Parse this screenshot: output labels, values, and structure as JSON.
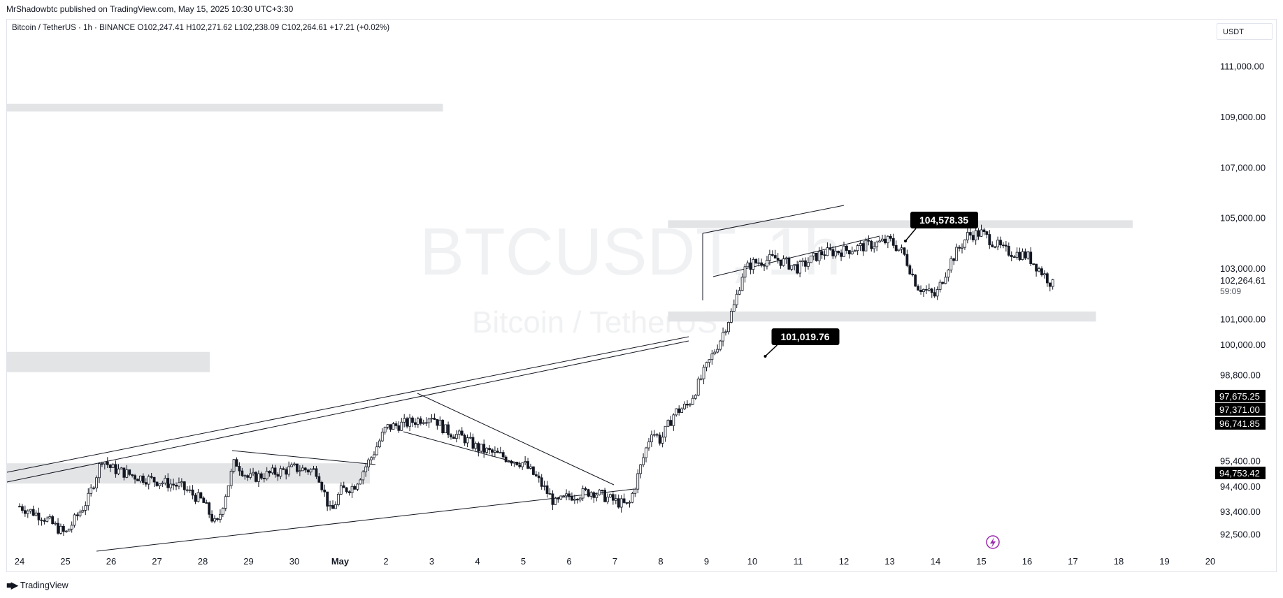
{
  "header": {
    "publisher": "MrShadowbtc published on TradingView.com, May 15, 2025 10:30 UTC+3:30"
  },
  "legend": {
    "symbol": "Bitcoin / TetherUS · 1h · BINANCE",
    "open": "O102,247.41",
    "high": "H102,271.62",
    "low": "L102,238.09",
    "close": "C102,264.61",
    "change": "+17.21 (+0.02%)"
  },
  "currency_button": "USDT",
  "watermark": {
    "symbol": "BTCUSDT, 1h",
    "name": "Bitcoin / TetherUS"
  },
  "footer": {
    "logo_icon": "tv-logo-icon",
    "brand": "TradingView"
  },
  "colors": {
    "tag": "#000000",
    "zone": "#e3e4e6",
    "candle": "#131722",
    "alert_icon": "#9c27b0"
  },
  "chart_data": {
    "type": "candlestick",
    "symbol": "BTCUSDT",
    "interval": "1h",
    "exchange": "BINANCE",
    "x_ticks": [
      "24",
      "25",
      "26",
      "27",
      "28",
      "29",
      "30",
      "May",
      "2",
      "3",
      "4",
      "5",
      "6",
      "7",
      "8",
      "9",
      "10",
      "11",
      "12",
      "13",
      "14",
      "15",
      "16",
      "17",
      "18",
      "19",
      "20"
    ],
    "y_ticks": [
      "111,000.00",
      "109,000.00",
      "107,000.00",
      "105,000.00",
      "103,000.00",
      "101,000.00",
      "100,000.00",
      "98,800.00",
      "95,400.00",
      "94,400.00",
      "93,400.00",
      "92,500.00"
    ],
    "ylim": [
      91800,
      112500
    ],
    "current_price": {
      "value": "102,264.61",
      "countdown": "59:09"
    },
    "price_tags": [
      "97,675.25",
      "97,371.00",
      "96,741.85",
      "94,753.42"
    ],
    "callouts": [
      {
        "label": "104,578.35",
        "date": "14",
        "price": 104578.35
      },
      {
        "label": "101,019.76",
        "date": "11",
        "price": 101019.76
      }
    ],
    "zones": [
      {
        "from": "24",
        "to": "2",
        "low": 94500,
        "high": 95300
      },
      {
        "from": "24",
        "to": "28",
        "low": 98900,
        "high": 99700
      },
      {
        "from": "24",
        "to": "3",
        "low": 109200,
        "high": 109500
      },
      {
        "from": "9",
        "to": "17",
        "low": 100900,
        "high": 101300
      },
      {
        "from": "9",
        "to": "18",
        "low": 104600,
        "high": 104900
      }
    ],
    "path": [
      [
        "24",
        93600
      ],
      [
        "24.5",
        93200
      ],
      [
        "25",
        92500
      ],
      [
        "25.5",
        93900
      ],
      [
        "25.8",
        95500
      ],
      [
        "26",
        95100
      ],
      [
        "26.5",
        94800
      ],
      [
        "27",
        94600
      ],
      [
        "27.5",
        94400
      ],
      [
        "28",
        93800
      ],
      [
        "28.3",
        92800
      ],
      [
        "28.7",
        95400
      ],
      [
        "29",
        94700
      ],
      [
        "29.5",
        94900
      ],
      [
        "30",
        95100
      ],
      [
        "30.5",
        95000
      ],
      [
        "30.8",
        93300
      ],
      [
        "31",
        94200
      ],
      [
        "31.3",
        94400
      ],
      [
        "31.7",
        95600
      ],
      [
        "32",
        96700
      ],
      [
        "32.5",
        96900
      ],
      [
        "33",
        97200
      ],
      [
        "33.3",
        96600
      ],
      [
        "33.7",
        96300
      ],
      [
        "34",
        95900
      ],
      [
        "34.5",
        95600
      ],
      [
        "35",
        95300
      ],
      [
        "35.3",
        94700
      ],
      [
        "35.7",
        93700
      ],
      [
        "36",
        94000
      ],
      [
        "36.5",
        94200
      ],
      [
        "37",
        93800
      ],
      [
        "37.3",
        93600
      ],
      [
        "37.5",
        94800
      ],
      [
        "37.8",
        96600
      ],
      [
        "38",
        96200
      ],
      [
        "38.3",
        97300
      ],
      [
        "38.6",
        97600
      ],
      [
        "39",
        99100
      ],
      [
        "39.3",
        100200
      ],
      [
        "39.6",
        101500
      ],
      [
        "39.8",
        102900
      ],
      [
        "40",
        103200
      ],
      [
        "40.5",
        103400
      ],
      [
        "41",
        103000
      ],
      [
        "41.5",
        103600
      ],
      [
        "42",
        103700
      ],
      [
        "42.5",
        103900
      ],
      [
        "43",
        104100
      ],
      [
        "43.3",
        103600
      ],
      [
        "43.6",
        102300
      ],
      [
        "44",
        101900
      ],
      [
        "44.3",
        103200
      ],
      [
        "44.7",
        104300
      ],
      [
        "45",
        104400
      ],
      [
        "45.5",
        103700
      ],
      [
        "46",
        103500
      ],
      [
        "46.3",
        102900
      ],
      [
        "46.6",
        102260
      ]
    ]
  }
}
